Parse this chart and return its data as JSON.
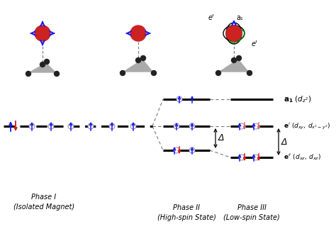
{
  "bg_color": "#ffffff",
  "phase1_label": "Phase I\n(Isolated Magnet)",
  "phase2_label": "Phase II\n(High-spin State)",
  "phase3_label": "Phase III\n(Low-spin State)",
  "delta_symbol": "Δ",
  "blue": "#1a1aee",
  "red": "#dd1111",
  "pink": "#dd6666",
  "black": "#000000",
  "gray": "#666666",
  "darkgray": "#333333",
  "green": "#008800"
}
